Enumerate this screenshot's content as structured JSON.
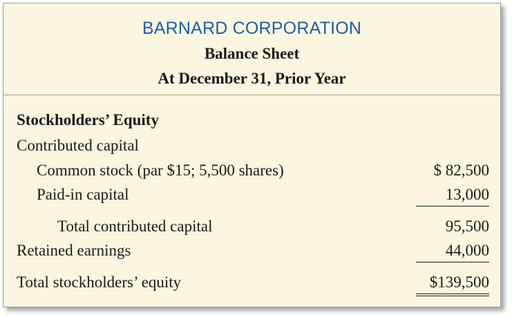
{
  "header": {
    "company": "BARNARD CORPORATION",
    "title": "Balance Sheet",
    "date": "At December 31, Prior Year"
  },
  "section": {
    "heading": "Stockholders’ Equity",
    "contributed_capital_label": "Contributed capital",
    "rows": [
      {
        "label": "Common stock (par $15; 5,500 shares)",
        "amount": "$ 82,500"
      },
      {
        "label": "Paid-in capital",
        "amount": "13,000"
      },
      {
        "label": "Total contributed capital",
        "amount": "95,500"
      },
      {
        "label": "Retained earnings",
        "amount": "44,000"
      },
      {
        "label": "Total stockholders’ equity",
        "amount": "$139,500"
      }
    ]
  }
}
